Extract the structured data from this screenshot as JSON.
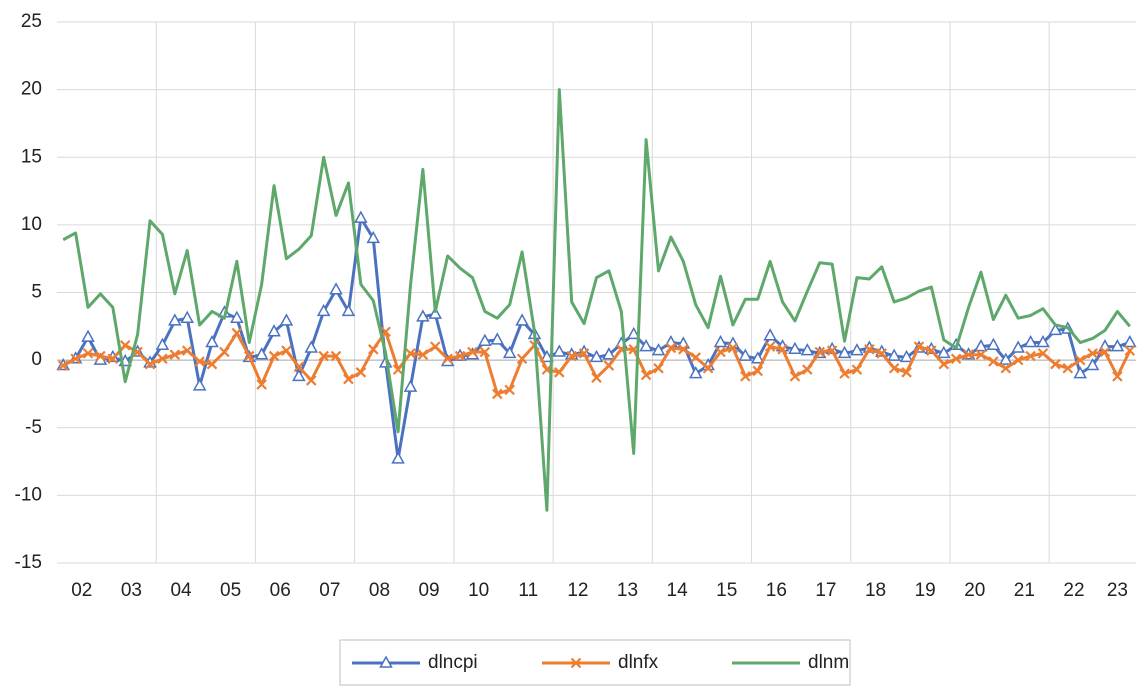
{
  "chart_data": {
    "type": "line",
    "categories": [
      "02",
      null,
      null,
      null,
      "03",
      null,
      null,
      null,
      "04",
      null,
      null,
      null,
      "05",
      null,
      null,
      null,
      "06",
      null,
      null,
      null,
      "07",
      null,
      null,
      null,
      "08",
      null,
      null,
      null,
      "09",
      null,
      null,
      null,
      "10",
      null,
      null,
      null,
      "11",
      null,
      null,
      null,
      "12",
      null,
      null,
      null,
      "13",
      null,
      null,
      null,
      "14",
      null,
      null,
      null,
      "15",
      null,
      null,
      null,
      "16",
      null,
      null,
      null,
      "17",
      null,
      null,
      null,
      "18",
      null,
      null,
      null,
      "19",
      null,
      null,
      null,
      "20",
      null,
      null,
      null,
      "21",
      null,
      null,
      null,
      "22",
      null,
      null,
      null,
      "23",
      null,
      null
    ],
    "series": [
      {
        "name": "dlncpi",
        "color": "#4a72c0",
        "marker": "triangle",
        "values": [
          -0.4,
          0.1,
          1.7,
          0.0,
          0.2,
          -0.1,
          0.6,
          -0.2,
          1.1,
          2.9,
          3.1,
          -1.9,
          1.3,
          3.5,
          3.1,
          0.2,
          0.4,
          2.1,
          2.9,
          -1.2,
          0.9,
          3.6,
          5.2,
          3.6,
          10.5,
          9.0,
          -0.2,
          -7.3,
          -2.0,
          3.2,
          3.4,
          -0.1,
          0.3,
          0.4,
          1.4,
          1.5,
          0.5,
          2.9,
          1.9,
          0.2,
          0.6,
          0.4,
          0.6,
          0.2,
          0.4,
          1.2,
          1.9,
          1.0,
          0.7,
          1.3,
          1.2,
          -1.0,
          -0.4,
          1.3,
          1.2,
          0.3,
          0.1,
          1.8,
          1.0,
          0.8,
          0.7,
          0.5,
          0.8,
          0.5,
          0.7,
          0.9,
          0.6,
          0.3,
          0.2,
          0.9,
          0.8,
          0.5,
          1.1,
          0.4,
          1.0,
          1.1,
          0.0,
          0.9,
          1.3,
          1.3,
          2.2,
          2.3,
          -1.0,
          -0.4,
          1.0,
          1.0,
          1.3
        ]
      },
      {
        "name": "dlnfx",
        "color": "#ed7d31",
        "marker": "x",
        "values": [
          -0.4,
          0.1,
          0.5,
          0.3,
          0.1,
          1.1,
          0.6,
          -0.3,
          0.1,
          0.4,
          0.7,
          -0.1,
          -0.3,
          0.6,
          2.0,
          0.3,
          -1.8,
          0.3,
          0.7,
          -0.5,
          -1.5,
          0.3,
          0.3,
          -1.4,
          -0.9,
          0.8,
          2.1,
          -0.7,
          0.5,
          0.4,
          1.0,
          0.1,
          0.3,
          0.6,
          0.6,
          -2.5,
          -2.2,
          0.1,
          1.1,
          -0.7,
          -0.9,
          0.3,
          0.5,
          -1.3,
          -0.4,
          0.8,
          0.8,
          -1.1,
          -0.6,
          0.9,
          0.8,
          0.2,
          -0.6,
          0.6,
          0.9,
          -1.2,
          -0.8,
          1.0,
          0.8,
          -1.2,
          -0.7,
          0.6,
          0.7,
          -1.0,
          -0.7,
          0.8,
          0.5,
          -0.6,
          -0.9,
          1.0,
          0.7,
          -0.3,
          0.1,
          0.4,
          0.4,
          -0.1,
          -0.6,
          0.0,
          0.3,
          0.5,
          -0.3,
          -0.6,
          0.0,
          0.5,
          0.6,
          -1.2,
          0.7
        ]
      },
      {
        "name": "dlnm",
        "color": "#5fa86b",
        "marker": "none",
        "values": [
          8.9,
          9.4,
          3.9,
          4.9,
          3.9,
          -1.6,
          1.9,
          10.3,
          9.3,
          4.9,
          8.1,
          2.6,
          3.6,
          3.1,
          7.3,
          1.3,
          5.6,
          12.9,
          7.5,
          8.2,
          9.2,
          15.0,
          10.7,
          13.1,
          5.6,
          4.4,
          0.5,
          -5.3,
          5.5,
          14.1,
          3.6,
          7.7,
          6.8,
          6.1,
          3.6,
          3.1,
          4.1,
          8.0,
          2.1,
          -11.1,
          20.0,
          4.3,
          2.7,
          6.1,
          6.6,
          3.6,
          -6.9,
          16.3,
          6.6,
          9.1,
          7.3,
          4.1,
          2.4,
          6.2,
          2.6,
          4.5,
          4.5,
          7.3,
          4.3,
          2.9,
          5.1,
          7.2,
          7.1,
          1.4,
          6.1,
          6.0,
          6.9,
          4.3,
          4.6,
          5.1,
          5.4,
          1.5,
          0.9,
          3.9,
          6.5,
          3.0,
          4.8,
          3.1,
          3.3,
          3.8,
          2.6,
          2.4,
          1.3,
          1.6,
          2.2,
          3.6,
          2.5
        ]
      }
    ],
    "ylim": [
      -15,
      25
    ],
    "yticks": [
      -15,
      -10,
      -5,
      0,
      5,
      10,
      15,
      20,
      25
    ],
    "grid": true,
    "legend": "bottom"
  }
}
